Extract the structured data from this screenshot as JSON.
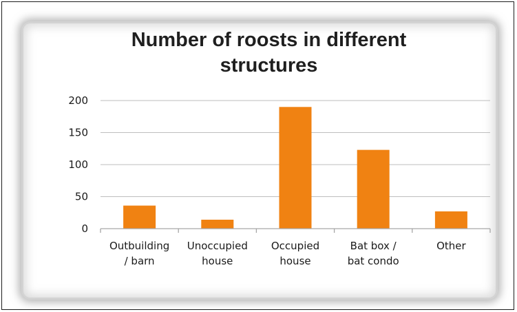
{
  "chart_data": {
    "type": "bar",
    "title_lines": [
      "Number of roosts in different",
      "structures"
    ],
    "categories": [
      [
        "Outbuilding",
        "/ barn"
      ],
      [
        "Unoccupied",
        "house"
      ],
      [
        "Occupied",
        "house"
      ],
      [
        "Bat box /",
        "bat condo"
      ],
      [
        "Other"
      ]
    ],
    "values": [
      36,
      14,
      190,
      123,
      27
    ],
    "ylim": [
      0,
      200
    ],
    "yticks": [
      0,
      50,
      100,
      150,
      200
    ],
    "grid": true,
    "legend": "none",
    "bar_color": "#f08212",
    "grid_color": "#bdbdbd"
  }
}
